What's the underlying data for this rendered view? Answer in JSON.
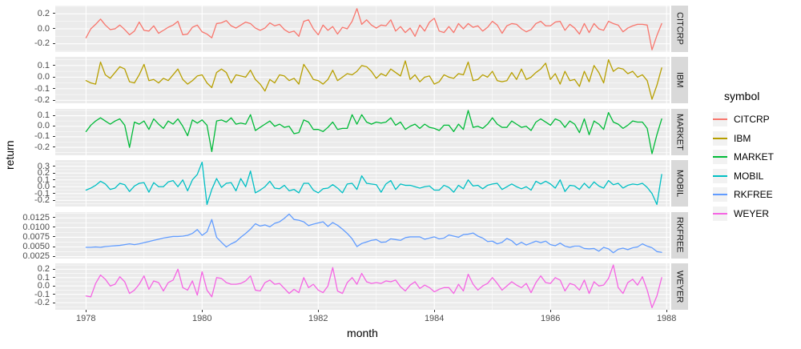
{
  "figure": {
    "ylabel": "return",
    "xlabel": "month",
    "legend_title": "symbol"
  },
  "colors": {
    "page_bg": "#FFFFFF",
    "panel_bg": "#EBEBEB",
    "grid": "#FFFFFF",
    "strip_bg": "#D9D9D9",
    "legend_key_bg": "#F2F2F2",
    "tick_text": "#4D4D4D",
    "tick_mark": "#333333",
    "axis_title_text": "#000000"
  },
  "chart_data": {
    "type": "line",
    "title": "",
    "xlabel": "month",
    "ylabel": "return",
    "legend_title": "symbol",
    "legend_position": "right",
    "grid": true,
    "facet_layout": "rows_free_y",
    "x_unit": "monthly, Jan 1978 to Dec 1987",
    "x_tick_labels": [
      "1978",
      "1980",
      "1982",
      "1984",
      "1986",
      "1988"
    ],
    "x_tick_months": [
      0,
      24,
      48,
      72,
      96,
      120
    ],
    "facets": [
      {
        "label": "CITCRP",
        "color": "#F8766D",
        "ylim": [
          -0.31,
          0.31
        ],
        "ytick_values": [
          0.2,
          0.0,
          -0.2
        ],
        "ytick_labels": [
          "0.2",
          "0.0",
          "-0.2"
        ],
        "values": [
          -0.12,
          0.0,
          0.06,
          0.13,
          0.05,
          -0.01,
          0.0,
          0.05,
          -0.01,
          -0.08,
          -0.03,
          0.09,
          -0.02,
          -0.03,
          0.04,
          -0.06,
          -0.02,
          0.02,
          0.05,
          0.1,
          -0.08,
          -0.07,
          0.02,
          0.05,
          -0.04,
          -0.07,
          -0.12,
          0.07,
          0.08,
          0.11,
          0.04,
          0.01,
          0.05,
          0.09,
          0.07,
          0.01,
          -0.02,
          0.01,
          0.08,
          0.04,
          0.06,
          -0.01,
          -0.05,
          -0.03,
          -0.1,
          0.1,
          0.12,
          0.0,
          -0.08,
          0.05,
          -0.02,
          0.03,
          -0.07,
          0.02,
          0.0,
          0.1,
          0.27,
          0.06,
          0.12,
          0.05,
          0.01,
          0.05,
          0.04,
          0.12,
          -0.03,
          0.03,
          -0.05,
          0.01,
          -0.1,
          0.05,
          -0.03,
          0.09,
          0.14,
          -0.03,
          -0.05,
          0.03,
          -0.05,
          0.07,
          0.0,
          0.07,
          0.02,
          0.04,
          -0.03,
          0.02,
          0.1,
          0.05,
          -0.06,
          0.04,
          0.07,
          0.06,
          0.0,
          -0.04,
          -0.01,
          0.07,
          0.1,
          0.04,
          0.04,
          0.09,
          0.1,
          -0.02,
          0.06,
          0.01,
          -0.07,
          0.07,
          -0.05,
          0.07,
          0.0,
          -0.02,
          0.1,
          0.07,
          0.05,
          -0.04,
          0.01,
          0.04,
          0.06,
          0.06,
          0.05,
          -0.28,
          -0.09,
          0.07
        ]
      },
      {
        "label": "IBM",
        "color": "#B79F00",
        "ylim": [
          -0.225,
          0.175
        ],
        "ytick_values": [
          0.1,
          0.0,
          -0.1,
          -0.2
        ],
        "ytick_labels": [
          "0.1",
          "0.0",
          "-0.1",
          "-0.2"
        ],
        "values": [
          -0.03,
          -0.05,
          -0.06,
          0.13,
          0.02,
          -0.01,
          0.04,
          0.09,
          0.07,
          -0.04,
          -0.05,
          0.02,
          0.11,
          -0.03,
          -0.02,
          -0.05,
          -0.01,
          -0.03,
          0.02,
          0.07,
          -0.02,
          -0.06,
          -0.03,
          0.01,
          0.02,
          -0.05,
          -0.09,
          0.04,
          0.07,
          0.04,
          -0.05,
          0.02,
          0.01,
          0.0,
          0.06,
          -0.02,
          -0.06,
          -0.12,
          -0.02,
          -0.05,
          0.02,
          0.01,
          -0.03,
          -0.01,
          -0.06,
          0.11,
          0.05,
          -0.02,
          -0.03,
          -0.06,
          -0.02,
          0.06,
          -0.03,
          0.0,
          0.03,
          0.02,
          0.05,
          0.1,
          0.09,
          0.05,
          -0.01,
          0.03,
          0.01,
          0.07,
          0.04,
          0.01,
          0.14,
          -0.02,
          0.02,
          -0.04,
          0.0,
          0.01,
          -0.06,
          -0.04,
          0.02,
          0.0,
          -0.01,
          0.03,
          0.02,
          0.13,
          -0.03,
          -0.02,
          0.02,
          0.0,
          0.05,
          -0.03,
          -0.04,
          -0.03,
          0.04,
          -0.02,
          0.07,
          -0.02,
          0.0,
          0.04,
          0.07,
          0.12,
          -0.02,
          0.03,
          -0.06,
          0.05,
          -0.03,
          -0.02,
          -0.08,
          0.05,
          -0.04,
          0.1,
          0.04,
          -0.05,
          0.15,
          0.05,
          0.08,
          0.07,
          0.03,
          0.05,
          0.0,
          0.02,
          -0.03,
          -0.19,
          -0.07,
          0.08
        ]
      },
      {
        "label": "MARKET",
        "color": "#00BA38",
        "ylim": [
          -0.275,
          0.165
        ],
        "ytick_values": [
          0.1,
          0.0,
          -0.1,
          -0.2
        ],
        "ytick_labels": [
          "0.1",
          "0.0",
          "-0.1",
          "-0.2"
        ],
        "values": [
          -0.05,
          0.01,
          0.05,
          0.08,
          0.05,
          0.02,
          0.05,
          0.07,
          0.01,
          -0.2,
          0.04,
          0.02,
          0.05,
          -0.03,
          0.07,
          0.02,
          -0.02,
          0.05,
          0.02,
          0.07,
          0.0,
          -0.09,
          0.06,
          0.03,
          0.06,
          0.01,
          -0.24,
          0.05,
          0.06,
          0.04,
          0.08,
          0.02,
          0.03,
          0.02,
          0.11,
          -0.04,
          -0.01,
          0.02,
          0.05,
          0.0,
          0.02,
          -0.01,
          0.0,
          -0.07,
          -0.06,
          0.06,
          0.04,
          -0.03,
          -0.03,
          -0.05,
          -0.01,
          0.04,
          -0.03,
          -0.02,
          -0.02,
          0.11,
          0.02,
          0.11,
          0.04,
          0.02,
          0.04,
          0.03,
          0.04,
          0.08,
          0.01,
          0.04,
          -0.03,
          0.0,
          0.02,
          -0.02,
          0.02,
          -0.01,
          -0.02,
          -0.04,
          0.01,
          0.01,
          -0.05,
          0.02,
          -0.03,
          0.15,
          -0.01,
          0.0,
          -0.02,
          0.02,
          0.08,
          0.02,
          -0.01,
          -0.01,
          0.05,
          0.02,
          -0.01,
          0.0,
          -0.04,
          0.04,
          0.07,
          0.04,
          0.01,
          0.07,
          0.05,
          -0.01,
          0.05,
          0.02,
          -0.06,
          0.07,
          -0.08,
          0.05,
          0.02,
          -0.03,
          0.13,
          0.04,
          0.02,
          -0.02,
          0.01,
          0.05,
          0.04,
          0.04,
          -0.02,
          -0.26,
          -0.08,
          0.07
        ]
      },
      {
        "label": "MOBIL",
        "color": "#00BFC4",
        "ylim": [
          -0.29,
          0.39
        ],
        "ytick_values": [
          0.3,
          0.2,
          0.1,
          0.0,
          -0.1,
          -0.2
        ],
        "ytick_labels": [
          "0.3",
          "0.2",
          "0.1",
          "0.0",
          "-0.1",
          "-0.2"
        ],
        "values": [
          -0.05,
          -0.02,
          0.02,
          0.08,
          0.04,
          -0.04,
          -0.02,
          0.05,
          0.03,
          -0.07,
          0.01,
          0.05,
          0.06,
          -0.08,
          0.06,
          0.0,
          0.0,
          0.07,
          0.09,
          0.0,
          0.1,
          -0.06,
          0.1,
          0.18,
          0.36,
          -0.26,
          -0.04,
          0.12,
          -0.01,
          0.05,
          0.06,
          -0.06,
          0.12,
          0.0,
          0.23,
          -0.09,
          -0.05,
          0.0,
          0.08,
          -0.02,
          -0.03,
          0.02,
          -0.06,
          -0.04,
          -0.09,
          0.05,
          0.05,
          -0.05,
          -0.09,
          -0.03,
          -0.02,
          0.03,
          -0.02,
          -0.09,
          0.04,
          0.05,
          -0.04,
          0.16,
          0.05,
          0.04,
          0.03,
          -0.08,
          0.04,
          0.09,
          -0.04,
          0.04,
          0.02,
          0.02,
          0.0,
          -0.02,
          0.0,
          0.01,
          -0.05,
          -0.05,
          0.02,
          -0.01,
          -0.08,
          0.02,
          -0.03,
          0.1,
          0.01,
          0.02,
          -0.03,
          0.02,
          0.04,
          0.05,
          -0.04,
          0.0,
          0.04,
          0.0,
          -0.03,
          0.0,
          -0.05,
          0.08,
          0.04,
          0.08,
          0.04,
          -0.02,
          0.1,
          -0.07,
          0.02,
          0.01,
          -0.04,
          0.05,
          -0.02,
          0.07,
          0.01,
          -0.02,
          0.09,
          0.03,
          0.05,
          -0.02,
          0.02,
          0.04,
          0.03,
          0.05,
          -0.01,
          -0.1,
          -0.26,
          0.18
        ]
      },
      {
        "label": "RKFREE",
        "color": "#619CFF",
        "ylim": [
          0.002,
          0.014
        ],
        "ytick_values": [
          0.0125,
          0.01,
          0.0075,
          0.005,
          0.0025
        ],
        "ytick_labels": [
          "0.0125",
          "0.0100",
          "0.0075",
          "0.0050",
          "0.0025"
        ],
        "values": [
          0.0049,
          0.0049,
          0.005,
          0.0049,
          0.0051,
          0.0052,
          0.0053,
          0.0054,
          0.0056,
          0.0058,
          0.0056,
          0.0058,
          0.0061,
          0.0064,
          0.0067,
          0.007,
          0.0073,
          0.0075,
          0.0077,
          0.0077,
          0.0078,
          0.008,
          0.0085,
          0.0095,
          0.008,
          0.0089,
          0.0121,
          0.0075,
          0.0062,
          0.005,
          0.0058,
          0.0064,
          0.0075,
          0.0085,
          0.0096,
          0.011,
          0.0104,
          0.0107,
          0.0102,
          0.0111,
          0.0115,
          0.0124,
          0.0135,
          0.0121,
          0.0119,
          0.0115,
          0.0105,
          0.0109,
          0.0112,
          0.0115,
          0.0103,
          0.0113,
          0.0106,
          0.0096,
          0.0085,
          0.0071,
          0.0051,
          0.0059,
          0.0063,
          0.0067,
          0.0069,
          0.0062,
          0.0063,
          0.0071,
          0.0069,
          0.0067,
          0.0074,
          0.0076,
          0.0076,
          0.0076,
          0.007,
          0.0073,
          0.0076,
          0.0071,
          0.0073,
          0.0081,
          0.0078,
          0.0075,
          0.0082,
          0.0083,
          0.0086,
          0.0078,
          0.0073,
          0.0064,
          0.0065,
          0.0058,
          0.0062,
          0.0072,
          0.0066,
          0.0055,
          0.0062,
          0.0055,
          0.006,
          0.0065,
          0.0061,
          0.0065,
          0.0056,
          0.0053,
          0.006,
          0.0052,
          0.0049,
          0.0052,
          0.0052,
          0.0046,
          0.0045,
          0.0046,
          0.0039,
          0.0049,
          0.0045,
          0.0035,
          0.0044,
          0.0047,
          0.0043,
          0.0048,
          0.005,
          0.0058,
          0.0052,
          0.0048,
          0.0038,
          0.0036
        ]
      },
      {
        "label": "WEYER",
        "color": "#F564E3",
        "ylim": [
          -0.285,
          0.27
        ],
        "ytick_values": [
          0.2,
          0.1,
          0.0,
          -0.1,
          -0.2
        ],
        "ytick_labels": [
          "0.2",
          "0.1",
          "0.0",
          "-0.1",
          "-0.2"
        ],
        "values": [
          -0.12,
          -0.13,
          0.03,
          0.13,
          0.08,
          0.0,
          0.02,
          0.11,
          0.05,
          -0.09,
          -0.05,
          0.02,
          0.12,
          -0.04,
          0.06,
          0.04,
          -0.06,
          0.04,
          0.07,
          0.2,
          -0.02,
          -0.05,
          0.06,
          -0.11,
          0.17,
          -0.05,
          -0.13,
          0.1,
          0.09,
          0.04,
          0.02,
          0.02,
          0.03,
          0.06,
          0.12,
          -0.05,
          -0.06,
          0.04,
          0.07,
          0.02,
          0.03,
          -0.03,
          -0.09,
          -0.04,
          -0.08,
          0.1,
          -0.02,
          0.02,
          -0.05,
          -0.08,
          0.0,
          0.22,
          -0.06,
          -0.09,
          0.04,
          0.1,
          0.02,
          0.15,
          0.05,
          0.03,
          0.04,
          0.03,
          0.06,
          0.05,
          0.07,
          -0.01,
          -0.06,
          0.01,
          0.05,
          -0.03,
          0.01,
          -0.02,
          -0.07,
          -0.04,
          -0.02,
          -0.02,
          -0.09,
          0.02,
          -0.06,
          0.14,
          0.02,
          -0.05,
          0.0,
          0.03,
          0.1,
          0.03,
          -0.05,
          0.0,
          0.05,
          0.01,
          -0.02,
          0.03,
          -0.08,
          0.04,
          0.12,
          0.04,
          0.03,
          0.1,
          0.07,
          -0.06,
          0.03,
          0.01,
          -0.05,
          0.07,
          -0.09,
          0.05,
          0.0,
          0.01,
          0.09,
          0.25,
          -0.02,
          -0.09,
          0.04,
          0.08,
          0.01,
          0.11,
          -0.05,
          -0.26,
          -0.12,
          0.1
        ]
      }
    ]
  }
}
